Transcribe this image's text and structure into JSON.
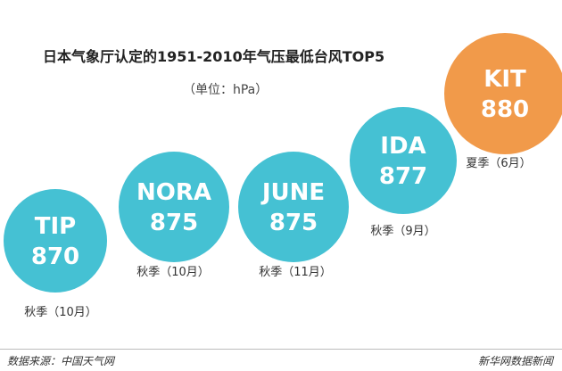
{
  "chart_data": {
    "type": "bubble",
    "title": "日本气象厅认定的1951-2010年气压最低台风TOP5",
    "unit": "（单位：hPa）",
    "items": [
      {
        "name": "TIP",
        "value": 870,
        "season": "秋季（10月）",
        "color": "#45c1d3"
      },
      {
        "name": "NORA",
        "value": 875,
        "season": "秋季（10月）",
        "color": "#45c1d3"
      },
      {
        "name": "JUNE",
        "value": 875,
        "season": "秋季（11月）",
        "color": "#45c1d3"
      },
      {
        "name": "IDA",
        "value": 877,
        "season": "秋季（9月）",
        "color": "#45c1d3"
      },
      {
        "name": "KIT",
        "value": 880,
        "season": "夏季（6月）",
        "color": "#f19a4a"
      }
    ]
  },
  "footer": {
    "source": "数据来源：中国天气网",
    "brand": "新华网数据新闻"
  }
}
